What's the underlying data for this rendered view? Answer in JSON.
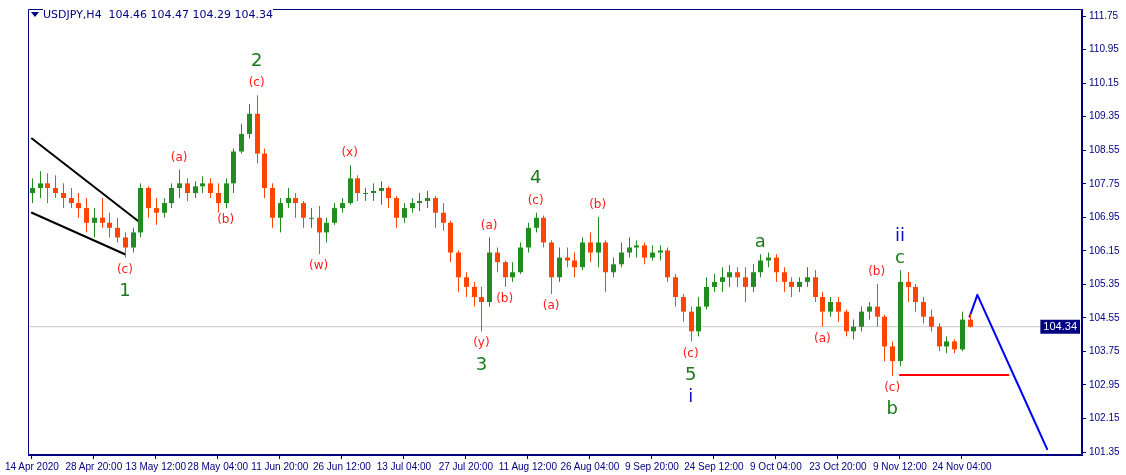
{
  "chart_data": {
    "type": "candlestick",
    "title": "USDJPY,H4  104.46 104.47 104.29 104.34",
    "categories": [
      "14 Apr 2020",
      null,
      null,
      null,
      null,
      null,
      null,
      null,
      "28 Apr 20:00",
      null,
      null,
      null,
      null,
      null,
      null,
      null,
      "13 May 12:00",
      null,
      null,
      null,
      null,
      null,
      null,
      null,
      "28 May 04:00",
      null,
      null,
      null,
      null,
      null,
      null,
      null,
      "11 Jun 20:00",
      null,
      null,
      null,
      null,
      null,
      null,
      null,
      "26 Jun 12:00",
      null,
      null,
      null,
      null,
      null,
      null,
      null,
      "13 Jul 04:00",
      null,
      null,
      null,
      null,
      null,
      null,
      null,
      "27 Jul 20:00",
      null,
      null,
      null,
      null,
      null,
      null,
      null,
      "11 Aug 12:00",
      null,
      null,
      null,
      null,
      null,
      null,
      null,
      "26 Aug 04:00",
      null,
      null,
      null,
      null,
      null,
      null,
      null,
      "9 Sep 20:00",
      null,
      null,
      null,
      null,
      null,
      null,
      null,
      "24 Sep 12:00",
      null,
      null,
      null,
      null,
      null,
      null,
      null,
      "9 Oct 04:00",
      null,
      null,
      null,
      null,
      null,
      null,
      null,
      "23 Oct 20:00",
      null,
      null,
      null,
      null,
      null,
      null,
      null,
      "9 Nov 12:00",
      null,
      null,
      null,
      null,
      null,
      null,
      null,
      "24 Nov 04:00",
      null,
      null,
      null,
      null,
      null,
      null,
      null,
      null,
      null,
      null,
      null,
      null,
      null,
      null,
      null
    ],
    "ohlc": [
      [
        107.53,
        107.88,
        107.29,
        107.65
      ],
      [
        107.65,
        108.05,
        107.41,
        107.76
      ],
      [
        107.76,
        108.0,
        107.29,
        107.65
      ],
      [
        107.65,
        107.95,
        107.41,
        107.53
      ],
      [
        107.53,
        107.76,
        107.17,
        107.41
      ],
      [
        107.41,
        107.65,
        107.17,
        107.29
      ],
      [
        107.29,
        107.53,
        106.94,
        107.17
      ],
      [
        107.17,
        107.41,
        106.59,
        106.82
      ],
      [
        106.82,
        107.17,
        106.47,
        106.94
      ],
      [
        106.94,
        107.41,
        106.7,
        106.82
      ],
      [
        106.82,
        107.06,
        106.47,
        106.7
      ],
      [
        106.7,
        106.94,
        106.35,
        106.47
      ],
      [
        106.47,
        106.59,
        105.99,
        106.23
      ],
      [
        106.23,
        106.7,
        106.11,
        106.59
      ],
      [
        106.59,
        107.76,
        106.47,
        107.65
      ],
      [
        107.65,
        107.69,
        106.94,
        107.17
      ],
      [
        107.17,
        107.41,
        106.77,
        107.06
      ],
      [
        107.06,
        107.41,
        106.94,
        107.29
      ],
      [
        107.29,
        107.76,
        107.17,
        107.65
      ],
      [
        107.65,
        108.09,
        107.41,
        107.76
      ],
      [
        107.76,
        107.88,
        107.34,
        107.53
      ],
      [
        107.53,
        107.81,
        107.41,
        107.69
      ],
      [
        107.69,
        107.93,
        107.53,
        107.76
      ],
      [
        107.76,
        107.88,
        107.41,
        107.53
      ],
      [
        107.53,
        107.76,
        107.06,
        107.29
      ],
      [
        107.29,
        107.88,
        107.17,
        107.76
      ],
      [
        107.76,
        108.59,
        107.53,
        108.52
      ],
      [
        108.52,
        109.18,
        108.47,
        108.94
      ],
      [
        108.94,
        109.65,
        108.83,
        109.42
      ],
      [
        109.42,
        109.86,
        108.24,
        108.47
      ],
      [
        108.47,
        108.59,
        107.41,
        107.65
      ],
      [
        107.65,
        107.76,
        106.7,
        106.94
      ],
      [
        106.94,
        107.41,
        106.59,
        107.29
      ],
      [
        107.29,
        107.65,
        107.17,
        107.41
      ],
      [
        107.41,
        107.53,
        106.94,
        107.29
      ],
      [
        107.29,
        107.34,
        106.7,
        106.94
      ],
      [
        106.94,
        107.17,
        106.7,
        106.94
      ],
      [
        106.94,
        107.22,
        106.07,
        106.59
      ],
      [
        106.59,
        106.94,
        106.35,
        106.82
      ],
      [
        106.82,
        107.29,
        106.77,
        107.17
      ],
      [
        107.17,
        107.41,
        107.06,
        107.29
      ],
      [
        107.29,
        108.19,
        107.25,
        107.88
      ],
      [
        107.88,
        107.95,
        107.34,
        107.53
      ],
      [
        107.53,
        107.65,
        107.34,
        107.53
      ],
      [
        107.53,
        107.76,
        107.34,
        107.58
      ],
      [
        107.58,
        107.81,
        107.25,
        107.65
      ],
      [
        107.65,
        107.69,
        107.17,
        107.41
      ],
      [
        107.41,
        107.46,
        106.7,
        106.94
      ],
      [
        106.94,
        107.29,
        106.82,
        107.17
      ],
      [
        107.17,
        107.41,
        107.06,
        107.29
      ],
      [
        107.29,
        107.53,
        107.1,
        107.34
      ],
      [
        107.34,
        107.58,
        107.17,
        107.41
      ],
      [
        107.41,
        107.46,
        106.7,
        107.06
      ],
      [
        107.06,
        107.29,
        106.63,
        106.82
      ],
      [
        106.82,
        106.87,
        105.88,
        106.11
      ],
      [
        106.11,
        106.16,
        105.17,
        105.52
      ],
      [
        105.52,
        105.64,
        105.05,
        105.29
      ],
      [
        105.29,
        105.41,
        104.82,
        105.05
      ],
      [
        105.05,
        105.29,
        104.23,
        104.93
      ],
      [
        104.93,
        106.47,
        104.82,
        106.11
      ],
      [
        106.11,
        106.23,
        105.64,
        105.88
      ],
      [
        105.88,
        105.92,
        105.29,
        105.52
      ],
      [
        105.52,
        105.88,
        105.41,
        105.64
      ],
      [
        105.64,
        106.35,
        105.6,
        106.23
      ],
      [
        106.23,
        106.82,
        106.11,
        106.7
      ],
      [
        106.7,
        107.06,
        106.59,
        106.94
      ],
      [
        106.94,
        106.99,
        106.23,
        106.35
      ],
      [
        106.35,
        106.4,
        105.12,
        105.52
      ],
      [
        105.52,
        106.23,
        105.41,
        105.99
      ],
      [
        105.99,
        106.23,
        105.76,
        105.92
      ],
      [
        105.92,
        106.11,
        105.52,
        105.76
      ],
      [
        105.76,
        106.47,
        105.69,
        106.35
      ],
      [
        106.35,
        106.59,
        105.88,
        106.11
      ],
      [
        106.11,
        106.96,
        105.76,
        106.35
      ],
      [
        106.35,
        106.4,
        105.17,
        105.64
      ],
      [
        105.64,
        105.99,
        105.52,
        105.83
      ],
      [
        105.83,
        106.35,
        105.76,
        106.11
      ],
      [
        106.11,
        106.47,
        105.99,
        106.23
      ],
      [
        106.23,
        106.4,
        105.99,
        106.28
      ],
      [
        106.28,
        106.35,
        105.83,
        105.99
      ],
      [
        105.99,
        106.28,
        105.92,
        106.11
      ],
      [
        106.11,
        106.28,
        105.92,
        106.16
      ],
      [
        106.16,
        106.23,
        105.41,
        105.52
      ],
      [
        105.52,
        105.6,
        104.82,
        105.05
      ],
      [
        105.05,
        105.12,
        104.46,
        104.7
      ],
      [
        104.7,
        104.82,
        103.99,
        104.23
      ],
      [
        104.23,
        105.05,
        104.11,
        104.82
      ],
      [
        104.82,
        105.52,
        104.75,
        105.29
      ],
      [
        105.29,
        105.6,
        105.17,
        105.41
      ],
      [
        105.41,
        105.76,
        105.17,
        105.52
      ],
      [
        105.52,
        105.81,
        105.29,
        105.64
      ],
      [
        105.64,
        105.76,
        105.29,
        105.52
      ],
      [
        105.52,
        105.76,
        104.93,
        105.29
      ],
      [
        105.29,
        105.83,
        105.17,
        105.64
      ],
      [
        105.64,
        106.07,
        105.52,
        105.92
      ],
      [
        105.92,
        106.11,
        105.76,
        105.99
      ],
      [
        105.99,
        106.07,
        105.41,
        105.64
      ],
      [
        105.64,
        105.76,
        105.17,
        105.41
      ],
      [
        105.41,
        105.52,
        105.05,
        105.29
      ],
      [
        105.29,
        105.52,
        105.17,
        105.41
      ],
      [
        105.41,
        105.76,
        105.29,
        105.52
      ],
      [
        105.52,
        105.69,
        104.93,
        105.05
      ],
      [
        105.05,
        105.17,
        104.34,
        104.7
      ],
      [
        104.7,
        105.05,
        104.58,
        104.93
      ],
      [
        104.93,
        105.05,
        104.46,
        104.7
      ],
      [
        104.7,
        104.75,
        104.11,
        104.23
      ],
      [
        104.23,
        104.51,
        104.04,
        104.34
      ],
      [
        104.34,
        104.82,
        104.23,
        104.7
      ],
      [
        104.7,
        104.93,
        104.51,
        104.82
      ],
      [
        104.82,
        105.36,
        104.34,
        104.58
      ],
      [
        104.58,
        104.63,
        103.52,
        103.87
      ],
      [
        103.87,
        103.99,
        103.17,
        103.52
      ],
      [
        103.52,
        105.69,
        103.4,
        105.41
      ],
      [
        105.41,
        105.64,
        104.93,
        105.29
      ],
      [
        105.29,
        105.36,
        104.7,
        104.93
      ],
      [
        104.93,
        105.05,
        104.42,
        104.58
      ],
      [
        104.58,
        104.75,
        104.23,
        104.34
      ],
      [
        104.34,
        104.42,
        103.76,
        103.87
      ],
      [
        103.87,
        104.11,
        103.71,
        103.99
      ],
      [
        103.99,
        104.04,
        103.71,
        103.8
      ],
      [
        103.8,
        104.7,
        103.76,
        104.51
      ],
      [
        104.51,
        104.65,
        104.32,
        104.34
      ],
      null,
      null,
      null,
      null,
      null,
      null,
      null,
      null,
      null,
      null,
      null,
      null,
      null,
      null
    ],
    "series": [
      {
        "type": "line",
        "color": "#000000",
        "values": [
          108.83,
          null,
          null,
          null,
          null,
          null,
          null,
          null,
          null,
          null,
          null,
          null,
          null,
          null,
          106.82,
          null,
          null,
          null,
          null,
          null,
          null,
          null,
          null,
          null,
          null,
          null,
          null,
          null,
          null,
          null,
          null,
          null,
          null,
          null,
          null,
          null,
          null,
          null,
          null,
          null,
          null,
          null,
          null,
          null,
          null,
          null,
          null,
          null,
          null,
          null,
          null,
          null,
          null,
          null,
          null,
          null,
          null,
          null,
          null,
          null,
          null,
          null,
          null,
          null,
          null,
          null,
          null,
          null,
          null,
          null,
          null,
          null,
          null,
          null,
          null,
          null,
          null,
          null,
          null,
          null,
          null,
          null,
          null,
          null,
          null,
          null,
          null,
          null,
          null,
          null,
          null,
          null,
          null,
          null,
          null,
          null,
          null,
          null,
          null,
          null,
          null,
          null,
          null,
          null,
          null,
          null,
          null,
          null,
          null,
          null,
          null,
          null,
          null,
          null,
          null,
          null,
          null,
          null,
          null,
          null,
          null,
          null,
          null,
          null,
          null,
          null,
          null,
          null,
          null,
          null,
          null,
          null,
          null,
          null,
          null,
          null
        ]
      },
      {
        "type": "line",
        "color": "#000000",
        "values": [
          107.06,
          null,
          null,
          null,
          null,
          null,
          null,
          null,
          null,
          null,
          null,
          null,
          106.07,
          null,
          null,
          null,
          null,
          null,
          null,
          null,
          null,
          null,
          null,
          null,
          null,
          null,
          null,
          null,
          null,
          null,
          null,
          null,
          null,
          null,
          null,
          null,
          null,
          null,
          null,
          null,
          null,
          null,
          null,
          null,
          null,
          null,
          null,
          null,
          null,
          null,
          null,
          null,
          null,
          null,
          null,
          null,
          null,
          null,
          null,
          null,
          null,
          null,
          null,
          null,
          null,
          null,
          null,
          null,
          null,
          null,
          null,
          null,
          null,
          null,
          null,
          null,
          null,
          null,
          null,
          null,
          null,
          null,
          null,
          null,
          null,
          null,
          null,
          null,
          null,
          null,
          null,
          null,
          null,
          null,
          null,
          null,
          null,
          null,
          null,
          null,
          null,
          null,
          null,
          null,
          null,
          null,
          null,
          null,
          null,
          null,
          null,
          null,
          null,
          null,
          null,
          null,
          null,
          null,
          null,
          null,
          null,
          null,
          null,
          null,
          null,
          null,
          null,
          null,
          null,
          null,
          null,
          null,
          null,
          null,
          null,
          null
        ]
      },
      {
        "type": "line",
        "color": "#ff0000",
        "values": [
          null,
          null,
          null,
          null,
          null,
          null,
          null,
          null,
          null,
          null,
          null,
          null,
          null,
          null,
          null,
          null,
          null,
          null,
          null,
          null,
          null,
          null,
          null,
          null,
          null,
          null,
          null,
          null,
          null,
          null,
          null,
          null,
          null,
          null,
          null,
          null,
          null,
          null,
          null,
          null,
          null,
          null,
          null,
          null,
          null,
          null,
          null,
          null,
          null,
          null,
          null,
          null,
          null,
          null,
          null,
          null,
          null,
          null,
          null,
          null,
          null,
          null,
          null,
          null,
          null,
          null,
          null,
          null,
          null,
          null,
          null,
          null,
          null,
          null,
          null,
          null,
          null,
          null,
          null,
          null,
          null,
          null,
          null,
          null,
          null,
          null,
          null,
          null,
          null,
          null,
          null,
          null,
          null,
          null,
          null,
          null,
          null,
          null,
          null,
          null,
          null,
          null,
          null,
          null,
          null,
          null,
          null,
          null,
          null,
          null,
          null,
          null,
          103.19,
          null,
          null,
          null,
          null,
          null,
          null,
          null,
          null,
          null,
          null,
          null,
          null,
          null,
          103.19,
          null,
          null,
          null,
          null,
          null,
          null,
          null,
          null,
          null
        ]
      },
      {
        "type": "line",
        "color": "#0000ff",
        "values": [
          null,
          null,
          null,
          null,
          null,
          null,
          null,
          null,
          null,
          null,
          null,
          null,
          null,
          null,
          null,
          null,
          null,
          null,
          null,
          null,
          null,
          null,
          null,
          null,
          null,
          null,
          null,
          null,
          null,
          null,
          null,
          null,
          null,
          null,
          null,
          null,
          null,
          null,
          null,
          null,
          null,
          null,
          null,
          null,
          null,
          null,
          null,
          null,
          null,
          null,
          null,
          null,
          null,
          null,
          null,
          null,
          null,
          null,
          null,
          null,
          null,
          null,
          null,
          null,
          null,
          null,
          null,
          null,
          null,
          null,
          null,
          null,
          null,
          null,
          null,
          null,
          null,
          null,
          null,
          null,
          null,
          null,
          null,
          null,
          null,
          null,
          null,
          null,
          null,
          null,
          null,
          null,
          null,
          null,
          null,
          null,
          null,
          null,
          null,
          null,
          null,
          null,
          null,
          null,
          null,
          null,
          null,
          null,
          null,
          null,
          null,
          null,
          null,
          null,
          null,
          null,
          null,
          null,
          null,
          null,
          null,
          104.58,
          105.1,
          null,
          null,
          null,
          null,
          null,
          null,
          null,
          null,
          101.42,
          null,
          null,
          null,
          null
        ]
      }
    ],
    "ylim": [
      101.28,
      111.92
    ],
    "yticks": [
      {
        "value": 101.35,
        "label": "101.35"
      },
      {
        "value": 102.15,
        "label": "102.15"
      },
      {
        "value": 102.95,
        "label": "102.95"
      },
      {
        "value": 103.75,
        "label": "103.75"
      },
      {
        "value": 104.55,
        "label": "104.55"
      },
      {
        "value": 105.35,
        "label": "105.35"
      },
      {
        "value": 106.15,
        "label": "106.15"
      },
      {
        "value": 106.95,
        "label": "106.95"
      },
      {
        "value": 107.75,
        "label": "107.75"
      },
      {
        "value": 108.55,
        "label": "108.55"
      },
      {
        "value": 109.35,
        "label": "109.35"
      },
      {
        "value": 110.15,
        "label": "110.15"
      },
      {
        "value": 110.95,
        "label": "110.95"
      },
      {
        "value": 111.75,
        "label": "111.75"
      }
    ],
    "ref_lines": [
      {
        "axis": "y",
        "value": 104.34,
        "label": "104.34",
        "color": "#c8c8c8"
      }
    ],
    "annotations": [
      "(c)",
      "1",
      "(a)",
      "(b)",
      "2",
      "(c)",
      "(w)",
      "(x)",
      "(a)",
      "(y)",
      "3",
      "(b)",
      "4",
      "(c)",
      "(a)",
      "(b)",
      "(c)",
      "5",
      "i",
      "a",
      "(a)",
      {
        "text": "(b)",
        "y": 105.36
      },
      "ii",
      "c",
      {
        "text": "(c)",
        "y": 103.17
      },
      {
        "text": "b",
        "y": 103.17
      }
    ]
  }
}
